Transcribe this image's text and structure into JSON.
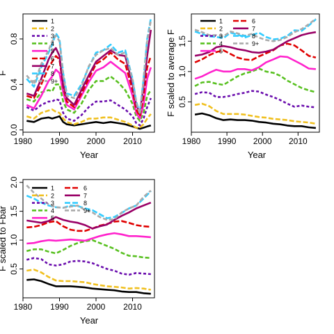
{
  "colors": {
    "series": [
      "#000000",
      "#f0c020",
      "#6a0dad",
      "#58c020",
      "#ff22cc",
      "#e00000",
      "#990066",
      "#33ccff",
      "#aaaaaa"
    ]
  },
  "chart_data": [
    {
      "type": "line",
      "xlabel": "Year",
      "ylabel": "F",
      "xlim": [
        1980,
        2016
      ],
      "ylim": [
        -0.02,
        1.02
      ],
      "xticks": [
        1980,
        1990,
        2000,
        2010
      ],
      "yticks": [
        0.0,
        0.4,
        0.8
      ],
      "ytick_labels": [
        "0.0",
        "0.4",
        "0.8"
      ],
      "legend": [
        "1",
        "2",
        "3",
        "4",
        "5",
        "6",
        "7",
        "8",
        "9+"
      ],
      "legend_position": "top-left",
      "x": [
        1981,
        1983,
        1985,
        1987,
        1988,
        1989,
        1990,
        1991,
        1992,
        1994,
        1996,
        1998,
        2000,
        2002,
        2004,
        2006,
        2008,
        2010,
        2011,
        2012,
        2013,
        2014,
        2015
      ],
      "series": [
        {
          "name": "1",
          "values": [
            0.08,
            0.07,
            0.1,
            0.11,
            0.1,
            0.11,
            0.12,
            0.07,
            0.05,
            0.04,
            0.05,
            0.06,
            0.07,
            0.06,
            0.07,
            0.06,
            0.05,
            0.03,
            0.02,
            0.01,
            0.02,
            0.03,
            0.04
          ]
        },
        {
          "name": "2",
          "values": [
            0.12,
            0.1,
            0.15,
            0.17,
            0.18,
            0.16,
            0.15,
            0.1,
            0.07,
            0.05,
            0.07,
            0.1,
            0.1,
            0.11,
            0.11,
            0.09,
            0.07,
            0.04,
            0.02,
            0.02,
            0.05,
            0.1,
            0.14
          ]
        },
        {
          "name": "3",
          "values": [
            0.2,
            0.17,
            0.22,
            0.25,
            0.25,
            0.27,
            0.26,
            0.15,
            0.1,
            0.08,
            0.13,
            0.2,
            0.25,
            0.25,
            0.26,
            0.22,
            0.18,
            0.12,
            0.06,
            0.04,
            0.1,
            0.2,
            0.28
          ]
        },
        {
          "name": "4",
          "values": [
            0.27,
            0.25,
            0.33,
            0.35,
            0.34,
            0.4,
            0.4,
            0.25,
            0.18,
            0.15,
            0.23,
            0.35,
            0.43,
            0.43,
            0.47,
            0.42,
            0.35,
            0.23,
            0.12,
            0.08,
            0.15,
            0.3,
            0.35
          ]
        },
        {
          "name": "5",
          "values": [
            0.22,
            0.19,
            0.3,
            0.43,
            0.47,
            0.53,
            0.5,
            0.33,
            0.22,
            0.18,
            0.3,
            0.42,
            0.52,
            0.55,
            0.6,
            0.55,
            0.5,
            0.3,
            0.15,
            0.1,
            0.22,
            0.45,
            0.55
          ]
        },
        {
          "name": "6",
          "values": [
            0.3,
            0.28,
            0.4,
            0.55,
            0.6,
            0.65,
            0.62,
            0.38,
            0.25,
            0.2,
            0.32,
            0.45,
            0.58,
            0.62,
            0.68,
            0.62,
            0.58,
            0.35,
            0.18,
            0.12,
            0.3,
            0.55,
            0.65
          ]
        },
        {
          "name": "7",
          "values": [
            0.32,
            0.3,
            0.45,
            0.62,
            0.68,
            0.72,
            0.65,
            0.4,
            0.28,
            0.22,
            0.35,
            0.48,
            0.6,
            0.65,
            0.7,
            0.66,
            0.65,
            0.4,
            0.22,
            0.15,
            0.38,
            0.65,
            0.88
          ]
        },
        {
          "name": "8",
          "values": [
            0.45,
            0.38,
            0.55,
            0.68,
            0.75,
            0.85,
            0.8,
            0.5,
            0.32,
            0.3,
            0.4,
            0.55,
            0.68,
            0.7,
            0.75,
            0.68,
            0.7,
            0.45,
            0.25,
            0.15,
            0.45,
            0.8,
            0.98
          ]
        },
        {
          "name": "9+",
          "values": [
            0.48,
            0.4,
            0.58,
            0.7,
            0.78,
            0.83,
            0.78,
            0.48,
            0.3,
            0.28,
            0.38,
            0.56,
            0.66,
            0.7,
            0.72,
            0.66,
            0.68,
            0.44,
            0.24,
            0.14,
            0.44,
            0.78,
            0.96
          ]
        }
      ]
    },
    {
      "type": "line",
      "xlabel": "Year",
      "ylabel": "F scaled to average F",
      "xlim": [
        1980,
        2016
      ],
      "ylim": [
        0.0,
        1.95
      ],
      "xticks": [
        1980,
        1990,
        2000,
        2010
      ],
      "yticks": [
        0.5,
        1.0,
        1.5
      ],
      "ytick_labels": [
        "0.5",
        "1.0",
        "1.5"
      ],
      "legend": [
        "1",
        "2",
        "3",
        "4",
        "5",
        "6",
        "7",
        "8",
        "9+"
      ],
      "legend_position": "top-left",
      "x": [
        1981,
        1983,
        1985,
        1987,
        1989,
        1991,
        1993,
        1995,
        1997,
        1999,
        2001,
        2003,
        2005,
        2007,
        2009,
        2011,
        2013,
        2015
      ],
      "series": [
        {
          "name": "1",
          "values": [
            0.29,
            0.31,
            0.28,
            0.23,
            0.2,
            0.21,
            0.2,
            0.2,
            0.19,
            0.17,
            0.16,
            0.14,
            0.13,
            0.11,
            0.1,
            0.1,
            0.08,
            0.07
          ]
        },
        {
          "name": "2",
          "values": [
            0.45,
            0.47,
            0.43,
            0.35,
            0.3,
            0.3,
            0.3,
            0.29,
            0.27,
            0.25,
            0.24,
            0.22,
            0.21,
            0.2,
            0.18,
            0.17,
            0.16,
            0.14
          ]
        },
        {
          "name": "3",
          "values": [
            0.63,
            0.66,
            0.65,
            0.58,
            0.58,
            0.6,
            0.63,
            0.65,
            0.68,
            0.67,
            0.62,
            0.58,
            0.53,
            0.47,
            0.42,
            0.44,
            0.42,
            0.41
          ]
        },
        {
          "name": "4",
          "values": [
            0.76,
            0.82,
            0.83,
            0.8,
            0.78,
            0.85,
            0.92,
            0.97,
            1.0,
            1.05,
            1.0,
            0.98,
            0.93,
            0.85,
            0.79,
            0.73,
            0.69,
            0.66
          ]
        },
        {
          "name": "5",
          "values": [
            0.88,
            0.92,
            0.98,
            1.03,
            1.0,
            1.0,
            1.04,
            1.04,
            1.02,
            1.07,
            1.15,
            1.2,
            1.25,
            1.24,
            1.18,
            1.12,
            1.05,
            1.04
          ]
        },
        {
          "name": "6",
          "values": [
            1.15,
            1.2,
            1.27,
            1.32,
            1.35,
            1.29,
            1.23,
            1.2,
            1.19,
            1.25,
            1.3,
            1.35,
            1.43,
            1.46,
            1.43,
            1.35,
            1.26,
            1.23
          ]
        },
        {
          "name": "7",
          "values": [
            1.26,
            1.28,
            1.32,
            1.4,
            1.42,
            1.4,
            1.37,
            1.35,
            1.32,
            1.31,
            1.33,
            1.36,
            1.43,
            1.5,
            1.55,
            1.6,
            1.63,
            1.65
          ]
        },
        {
          "name": "8",
          "values": [
            1.66,
            1.62,
            1.58,
            1.57,
            1.55,
            1.64,
            1.61,
            1.56,
            1.6,
            1.64,
            1.57,
            1.53,
            1.54,
            1.59,
            1.68,
            1.67,
            1.76,
            1.86
          ]
        },
        {
          "name": "9+",
          "values": [
            1.69,
            1.65,
            1.6,
            1.6,
            1.58,
            1.66,
            1.63,
            1.59,
            1.62,
            1.56,
            1.52,
            1.5,
            1.52,
            1.57,
            1.65,
            1.7,
            1.78,
            1.87
          ]
        }
      ]
    },
    {
      "type": "line",
      "xlabel": "Year",
      "ylabel": "F scaled to Fbar",
      "xlim": [
        1980,
        2016
      ],
      "ylim": [
        0.0,
        2.05
      ],
      "xticks": [
        1980,
        1990,
        2000,
        2010
      ],
      "yticks": [
        0.5,
        1.0,
        1.5,
        2.0
      ],
      "ytick_labels": [
        "0.5",
        "1.0",
        "1.5",
        "2.0"
      ],
      "legend": [
        "1",
        "2",
        "3",
        "4",
        "5",
        "6",
        "7",
        "8",
        "9+"
      ],
      "legend_position": "top-left",
      "x": [
        1981,
        1983,
        1985,
        1987,
        1989,
        1991,
        1993,
        1995,
        1997,
        1999,
        2001,
        2003,
        2005,
        2007,
        2009,
        2011,
        2013,
        2015
      ],
      "series": [
        {
          "name": "1",
          "values": [
            0.31,
            0.32,
            0.29,
            0.24,
            0.2,
            0.2,
            0.2,
            0.19,
            0.18,
            0.16,
            0.15,
            0.14,
            0.13,
            0.11,
            0.1,
            0.1,
            0.08,
            0.07
          ]
        },
        {
          "name": "2",
          "values": [
            0.47,
            0.49,
            0.44,
            0.36,
            0.3,
            0.29,
            0.29,
            0.28,
            0.27,
            0.24,
            0.22,
            0.2,
            0.19,
            0.18,
            0.16,
            0.17,
            0.16,
            0.14
          ]
        },
        {
          "name": "3",
          "values": [
            0.66,
            0.69,
            0.67,
            0.58,
            0.56,
            0.58,
            0.63,
            0.64,
            0.63,
            0.6,
            0.55,
            0.5,
            0.47,
            0.42,
            0.4,
            0.43,
            0.42,
            0.41
          ]
        },
        {
          "name": "4",
          "values": [
            0.81,
            0.84,
            0.84,
            0.8,
            0.77,
            0.83,
            0.9,
            0.95,
            0.98,
            1.0,
            0.95,
            0.9,
            0.85,
            0.78,
            0.73,
            0.72,
            0.7,
            0.69
          ]
        },
        {
          "name": "5",
          "values": [
            0.94,
            0.95,
            0.98,
            1.0,
            0.99,
            1.0,
            1.01,
            1.0,
            0.99,
            1.03,
            1.07,
            1.1,
            1.12,
            1.1,
            1.07,
            1.07,
            1.06,
            1.05
          ]
        },
        {
          "name": "6",
          "values": [
            1.22,
            1.23,
            1.26,
            1.31,
            1.33,
            1.24,
            1.18,
            1.16,
            1.16,
            1.2,
            1.25,
            1.28,
            1.32,
            1.33,
            1.3,
            1.26,
            1.24,
            1.23
          ]
        },
        {
          "name": "7",
          "values": [
            1.34,
            1.32,
            1.3,
            1.33,
            1.4,
            1.35,
            1.32,
            1.3,
            1.26,
            1.2,
            1.24,
            1.27,
            1.35,
            1.42,
            1.48,
            1.55,
            1.6,
            1.65
          ]
        },
        {
          "name": "8",
          "values": [
            1.77,
            1.72,
            1.65,
            1.6,
            1.57,
            1.56,
            1.6,
            1.59,
            1.55,
            1.52,
            1.45,
            1.38,
            1.4,
            1.47,
            1.55,
            1.6,
            1.72,
            1.85
          ]
        },
        {
          "name": "9+",
          "values": [
            1.95,
            1.82,
            1.72,
            1.62,
            1.57,
            1.56,
            1.58,
            1.6,
            1.52,
            1.48,
            1.4,
            1.35,
            1.36,
            1.48,
            1.55,
            1.6,
            1.75,
            1.86
          ]
        }
      ]
    }
  ]
}
